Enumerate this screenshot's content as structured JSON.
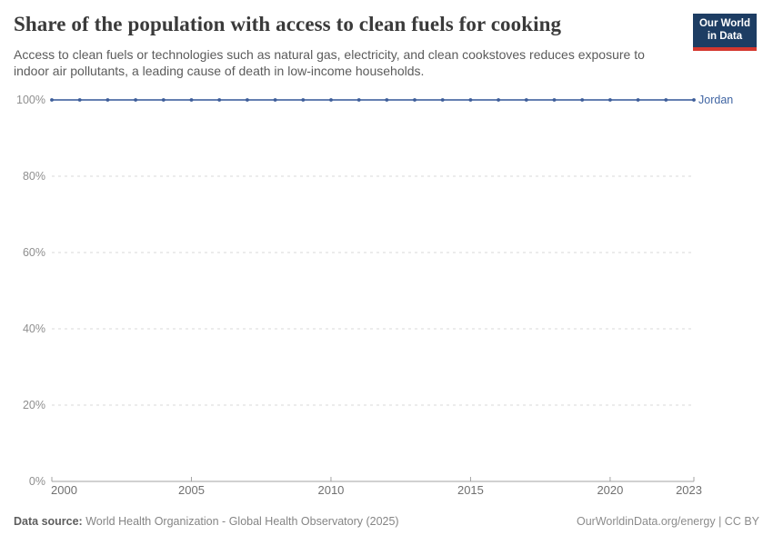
{
  "header": {
    "title": "Share of the population with access to clean fuels for cooking",
    "subtitle": "Access to clean fuels or technologies such as natural gas, electricity, and clean cookstoves reduces exposure to indoor air pollutants, a leading cause of death in low-income households.",
    "logo": {
      "line1": "Our World",
      "line2": "in Data"
    }
  },
  "chart_data": {
    "type": "line",
    "title": "Share of the population with access to clean fuels for cooking",
    "xlabel": "",
    "ylabel": "",
    "xlim": [
      2000,
      2023
    ],
    "ylim": [
      0,
      100
    ],
    "grid": "horizontal-dashed",
    "legend": "line-end-label",
    "x": [
      2000,
      2001,
      2002,
      2003,
      2004,
      2005,
      2006,
      2007,
      2008,
      2009,
      2010,
      2011,
      2012,
      2013,
      2014,
      2015,
      2016,
      2017,
      2018,
      2019,
      2020,
      2021,
      2022,
      2023
    ],
    "series": [
      {
        "name": "Jordan",
        "color": "#4e6da6",
        "marker_color": "#3d5d99",
        "values": [
          100,
          100,
          100,
          100,
          100,
          100,
          100,
          100,
          100,
          100,
          100,
          100,
          100,
          100,
          100,
          100,
          100,
          100,
          100,
          100,
          100,
          100,
          100,
          100
        ]
      }
    ],
    "y_ticks": [
      {
        "value": 0,
        "label": "0%"
      },
      {
        "value": 20,
        "label": "20%"
      },
      {
        "value": 40,
        "label": "40%"
      },
      {
        "value": 60,
        "label": "60%"
      },
      {
        "value": 80,
        "label": "80%"
      },
      {
        "value": 100,
        "label": "100%"
      }
    ],
    "x_ticks": [
      {
        "value": 2000,
        "label": "2000"
      },
      {
        "value": 2005,
        "label": "2005"
      },
      {
        "value": 2010,
        "label": "2010"
      },
      {
        "value": 2015,
        "label": "2015"
      },
      {
        "value": 2020,
        "label": "2020"
      },
      {
        "value": 2023,
        "label": "2023"
      }
    ]
  },
  "colors": {
    "line": "#4e6da6",
    "marker": "#3d5d99",
    "entity_label": "#4065a3",
    "grid": "#d9d9d9",
    "axis": "#a3a3a3",
    "tick_label_y": "#8f8f8f",
    "tick_label_x": "#707070",
    "logo_bg": "#1d3d63",
    "logo_bar": "#d4372e"
  },
  "footer": {
    "data_source_label": "Data source:",
    "data_source_text": "World Health Organization - Global Health Observatory (2025)",
    "credit": "OurWorldinData.org/energy | CC BY"
  }
}
